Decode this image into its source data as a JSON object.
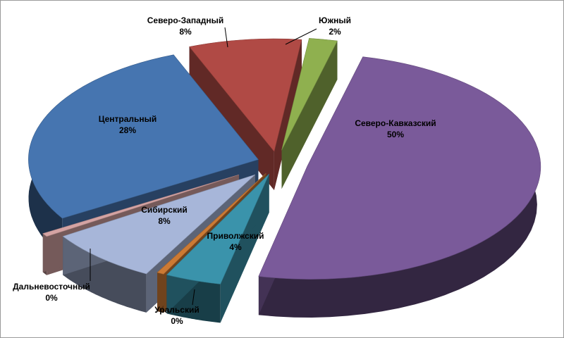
{
  "chart_data": {
    "type": "pie",
    "style": "3d-exploded",
    "legend": "none",
    "slices": [
      {
        "name": "Северо-Кавказский",
        "label": "50%",
        "value": 50,
        "color": "#7a5a9a"
      },
      {
        "name": "Приволжский",
        "label": "4%",
        "value": 4,
        "color": "#3a93ab"
      },
      {
        "name": "Уральский",
        "label": "0%",
        "value": 0.5,
        "color": "#cc7a34"
      },
      {
        "name": "Сибирский",
        "label": "8%",
        "value": 8,
        "color": "#a7b6d9"
      },
      {
        "name": "Дальневосточный",
        "label": "0%",
        "value": 0.5,
        "color": "#d4a3a3"
      },
      {
        "name": "Центральный",
        "label": "28%",
        "value": 28,
        "color": "#4675b0"
      },
      {
        "name": "Северо-Западный",
        "label": "8%",
        "value": 8,
        "color": "#b04a45"
      },
      {
        "name": "Южный",
        "label": "2%",
        "value": 2,
        "color": "#8fb04f"
      }
    ]
  }
}
